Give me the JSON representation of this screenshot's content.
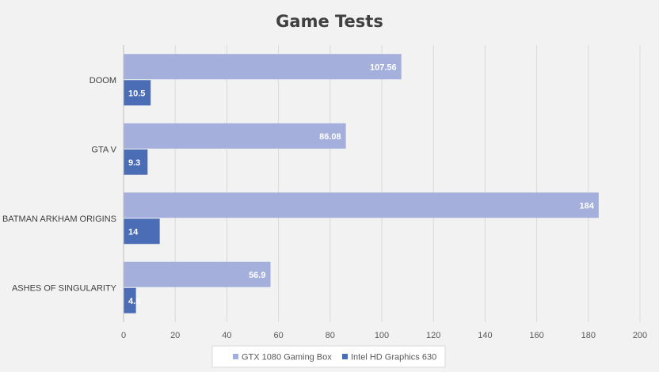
{
  "chart_data": {
    "type": "bar",
    "orientation": "horizontal",
    "title": "Game Tests",
    "categories": [
      "DOOM",
      "GTA V",
      "BATMAN ARKHAM ORIGINS",
      "ASHES OF SINGULARITY"
    ],
    "series": [
      {
        "name": "GTX 1080 Gaming Box",
        "values": [
          107.56,
          86.08,
          184,
          56.9
        ],
        "labels": [
          "107.56",
          "86.08",
          "184",
          "56.9"
        ],
        "color": "#a4afdb"
      },
      {
        "name": "Intel HD Graphics 630",
        "values": [
          10.5,
          9.3,
          14,
          4.8
        ],
        "labels": [
          "10.5",
          "9.3",
          "14",
          "4.8"
        ],
        "color": "#4b6db5"
      }
    ],
    "xlim": [
      0,
      200
    ],
    "xticks": [
      0,
      20,
      40,
      60,
      80,
      100,
      120,
      140,
      160,
      180,
      200
    ],
    "xlabel": "",
    "ylabel": "",
    "grid": true,
    "legend": "bottom"
  }
}
